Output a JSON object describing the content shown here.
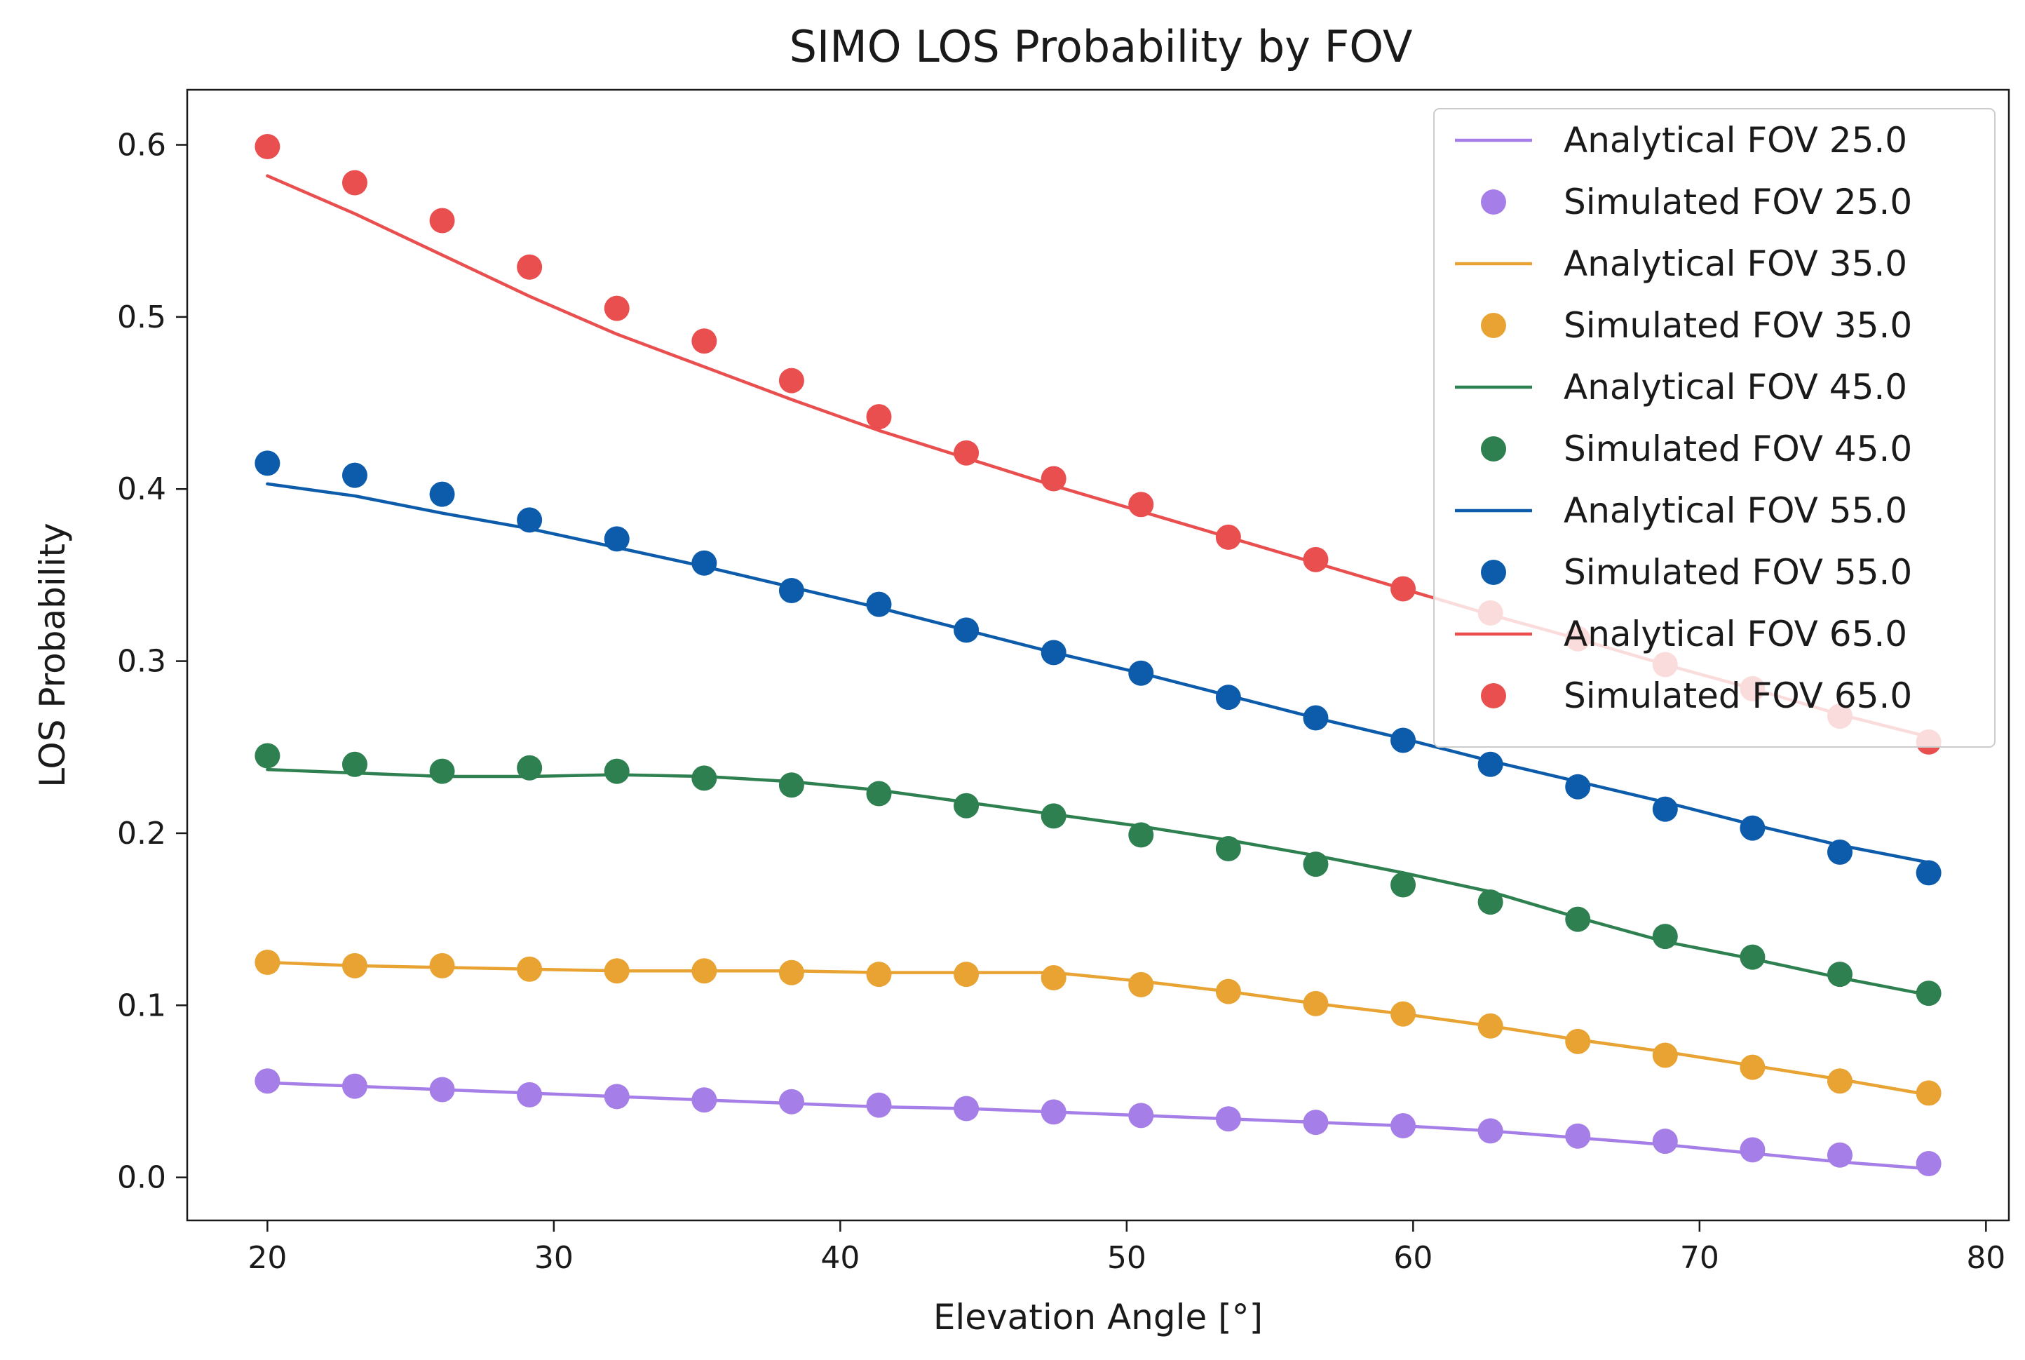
{
  "chart_data": {
    "type": "line",
    "title": "SIMO LOS Probability by FOV",
    "xlabel": "Elevation Angle [°]",
    "ylabel": "LOS Probability",
    "xlim": [
      17.2,
      80.8
    ],
    "ylim": [
      -0.025,
      0.632
    ],
    "xticks": [
      20,
      30,
      40,
      50,
      60,
      70,
      80
    ],
    "yticks": [
      0.0,
      0.1,
      0.2,
      0.3,
      0.4,
      0.5,
      0.6
    ],
    "xtick_labels": [
      "20",
      "30",
      "40",
      "50",
      "60",
      "70",
      "80"
    ],
    "ytick_labels": [
      "0.0",
      "0.1",
      "0.2",
      "0.3",
      "0.4",
      "0.5",
      "0.6"
    ],
    "grid": false,
    "legend_position": "top-right",
    "x": [
      20,
      23.05,
      26.1,
      29.15,
      32.2,
      35.25,
      38.3,
      41.35,
      44.4,
      47.45,
      50.5,
      53.55,
      56.6,
      59.65,
      62.7,
      65.75,
      68.8,
      71.85,
      74.9,
      78
    ],
    "series": [
      {
        "name": "Analytical FOV 25.0",
        "kind": "line",
        "color": "#a57ee8",
        "values": [
          0.055,
          0.053,
          0.051,
          0.049,
          0.047,
          0.045,
          0.043,
          0.041,
          0.04,
          0.038,
          0.036,
          0.034,
          0.032,
          0.03,
          0.027,
          0.023,
          0.019,
          0.014,
          0.009,
          0.005
        ]
      },
      {
        "name": "Simulated FOV 25.0",
        "kind": "scatter",
        "color": "#a57ee8",
        "values": [
          0.056,
          0.053,
          0.051,
          0.048,
          0.047,
          0.045,
          0.044,
          0.042,
          0.04,
          0.038,
          0.036,
          0.034,
          0.032,
          0.03,
          0.027,
          0.024,
          0.021,
          0.016,
          0.013,
          0.008
        ]
      },
      {
        "name": "Analytical FOV 35.0",
        "kind": "line",
        "color": "#e8a332",
        "values": [
          0.125,
          0.123,
          0.122,
          0.121,
          0.12,
          0.12,
          0.12,
          0.119,
          0.119,
          0.119,
          0.114,
          0.108,
          0.101,
          0.095,
          0.088,
          0.08,
          0.073,
          0.065,
          0.057,
          0.048
        ]
      },
      {
        "name": "Simulated FOV 35.0",
        "kind": "scatter",
        "color": "#e8a332",
        "values": [
          0.125,
          0.123,
          0.123,
          0.121,
          0.12,
          0.12,
          0.119,
          0.118,
          0.118,
          0.116,
          0.112,
          0.108,
          0.101,
          0.095,
          0.088,
          0.079,
          0.071,
          0.064,
          0.056,
          0.049
        ]
      },
      {
        "name": "Analytical FOV 45.0",
        "kind": "line",
        "color": "#2e8050",
        "values": [
          0.237,
          0.235,
          0.233,
          0.233,
          0.234,
          0.233,
          0.23,
          0.225,
          0.218,
          0.211,
          0.204,
          0.196,
          0.187,
          0.177,
          0.166,
          0.151,
          0.137,
          0.127,
          0.116,
          0.106
        ]
      },
      {
        "name": "Simulated FOV 45.0",
        "kind": "scatter",
        "color": "#2e8050",
        "values": [
          0.245,
          0.24,
          0.236,
          0.238,
          0.236,
          0.232,
          0.228,
          0.223,
          0.216,
          0.21,
          0.199,
          0.191,
          0.182,
          0.17,
          0.16,
          0.15,
          0.14,
          0.128,
          0.118,
          0.107
        ]
      },
      {
        "name": "Analytical FOV 55.0",
        "kind": "line",
        "color": "#0c5cab",
        "values": [
          0.403,
          0.396,
          0.386,
          0.377,
          0.366,
          0.355,
          0.343,
          0.331,
          0.318,
          0.305,
          0.293,
          0.28,
          0.267,
          0.255,
          0.242,
          0.23,
          0.218,
          0.205,
          0.193,
          0.183
        ]
      },
      {
        "name": "Simulated FOV 55.0",
        "kind": "scatter",
        "color": "#0c5cab",
        "values": [
          0.415,
          0.408,
          0.397,
          0.382,
          0.371,
          0.357,
          0.341,
          0.333,
          0.318,
          0.305,
          0.293,
          0.279,
          0.267,
          0.254,
          0.24,
          0.227,
          0.214,
          0.203,
          0.189,
          0.177
        ]
      },
      {
        "name": "Analytical FOV 65.0",
        "kind": "line",
        "color": "#e94f4f",
        "values": [
          0.582,
          0.56,
          0.536,
          0.512,
          0.49,
          0.471,
          0.452,
          0.434,
          0.418,
          0.402,
          0.387,
          0.372,
          0.357,
          0.342,
          0.327,
          0.313,
          0.298,
          0.284,
          0.269,
          0.256
        ]
      },
      {
        "name": "Simulated FOV 65.0",
        "kind": "scatter",
        "color": "#e94f4f",
        "values": [
          0.599,
          0.578,
          0.556,
          0.529,
          0.505,
          0.486,
          0.463,
          0.442,
          0.421,
          0.406,
          0.391,
          0.372,
          0.359,
          0.342,
          0.328,
          0.313,
          0.298,
          0.284,
          0.268,
          0.253
        ]
      }
    ]
  }
}
